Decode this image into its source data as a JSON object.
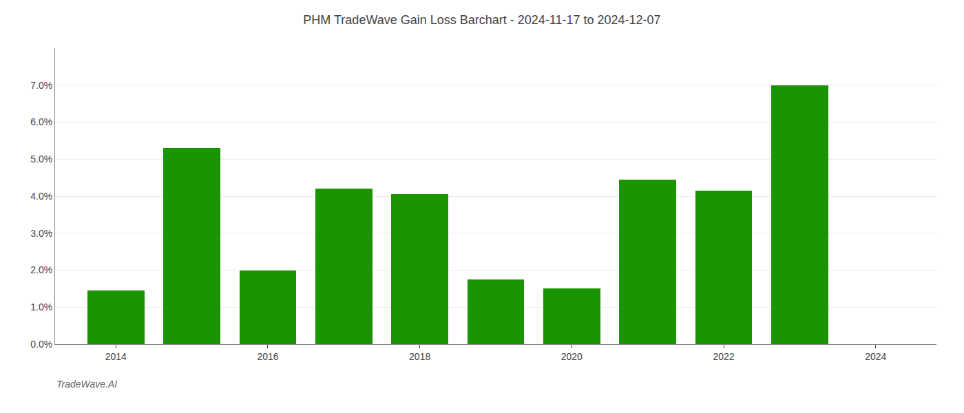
{
  "chart_data": {
    "type": "bar",
    "title": "PHM TradeWave Gain Loss Barchart - 2024-11-17 to 2024-12-07",
    "annotations": [
      "TradeWave.AI"
    ],
    "x": [
      2014,
      2015,
      2016,
      2017,
      2018,
      2019,
      2020,
      2021,
      2022,
      2023
    ],
    "values": [
      0.0145,
      0.053,
      0.02,
      0.042,
      0.0405,
      0.0175,
      0.015,
      0.0445,
      0.0415,
      0.07
    ],
    "color": "#1a9400",
    "xlim": [
      2013.2,
      2024.8
    ],
    "xticks": [
      2014,
      2016,
      2018,
      2020,
      2022,
      2024
    ],
    "ylim": [
      0,
      0.08
    ],
    "yticks": [
      {
        "value": 0.0,
        "label": "0.0%"
      },
      {
        "value": 0.01,
        "label": "1.0%"
      },
      {
        "value": 0.02,
        "label": "2.0%"
      },
      {
        "value": 0.03,
        "label": "3.0%"
      },
      {
        "value": 0.04,
        "label": "4.0%"
      },
      {
        "value": 0.05,
        "label": "5.0%"
      },
      {
        "value": 0.06,
        "label": "6.0%"
      },
      {
        "value": 0.07,
        "label": "7.0%"
      }
    ],
    "grid": true
  }
}
